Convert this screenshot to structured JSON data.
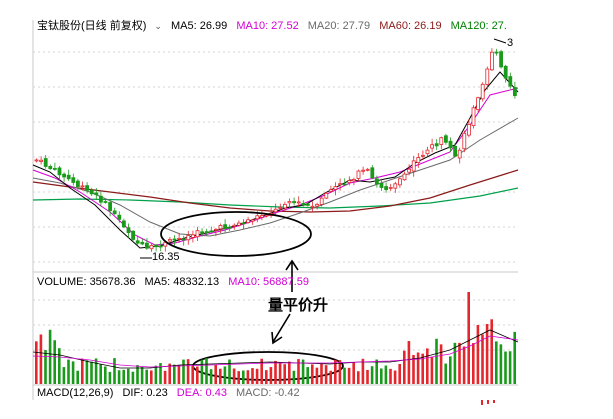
{
  "main_header": {
    "title": "宝钛股份(日线 前复权)",
    "ma5": "MA5: 26.99",
    "ma10": "MA10: 27.52",
    "ma20": "MA20: 27.79",
    "ma60": "MA60: 26.19",
    "ma120": "MA120: 27."
  },
  "volume_header": {
    "volume": "VOLUME: 35678.36",
    "ma5": "MA5: 48332.13",
    "ma10": "MA10: 56887.59"
  },
  "macd_header": {
    "macd_label": "MACD(12,26,9)",
    "dif": "DIF: 0.23",
    "dea": "DEA: 0.43",
    "macd": "MACD: -0.42"
  },
  "annotation": {
    "text": "量平价升",
    "low_price": "16.35",
    "high_price": "3"
  },
  "colors": {
    "up": "#e4262d",
    "down": "#1a9a1a",
    "ma5": "#000000",
    "ma10": "#d400d4",
    "ma20": "#6a6a6a",
    "ma60": "#8b1a1a",
    "ma120": "#008000"
  }
}
